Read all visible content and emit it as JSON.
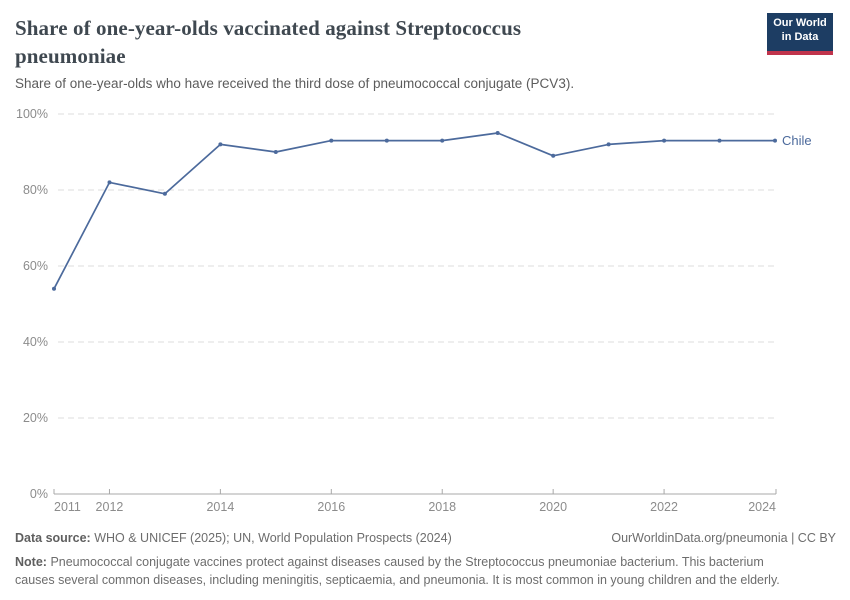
{
  "header": {
    "title": "Share of one-year-olds vaccinated against Streptococcus pneumoniae",
    "subtitle": "Share of one-year-olds who have received the third dose of pneumococcal conjugate (PCV3).",
    "logo": {
      "line1": "Our World",
      "line2": "in Data"
    }
  },
  "chart_data": {
    "type": "line",
    "title": "Share of one-year-olds vaccinated against Streptococcus pneumoniae",
    "x": [
      2011,
      2012,
      2013,
      2014,
      2015,
      2016,
      2017,
      2018,
      2019,
      2020,
      2021,
      2022,
      2023,
      2024
    ],
    "series": [
      {
        "name": "Chile",
        "values": [
          54,
          82,
          79,
          92,
          90,
          93,
          93,
          93,
          95,
          89,
          92,
          93,
          93,
          93
        ],
        "color": "#4c6a9c"
      }
    ],
    "ylim": [
      0,
      100
    ],
    "y_ticks": [
      0,
      20,
      40,
      60,
      80,
      100
    ],
    "y_tick_suffix": "%",
    "x_tick_labels": [
      2011,
      2012,
      2014,
      2016,
      2018,
      2020,
      2022,
      2024
    ],
    "grid": true,
    "legend_position": "end-of-line"
  },
  "footer": {
    "data_source_label": "Data source:",
    "data_source": "WHO & UNICEF (2025); UN, World Population Prospects (2024)",
    "attribution": "OurWorldinData.org/pneumonia | CC BY",
    "note_label": "Note:",
    "note": "Pneumococcal conjugate vaccines protect against diseases caused by the Streptococcus pneumoniae bacterium. This bacterium causes several common diseases, including meningitis, septicaemia, and pneumonia. It is most common in young children and the elderly."
  },
  "colors": {
    "line": "#4c6a9c",
    "logo_bg": "#1d3d63",
    "logo_accent": "#c0344c",
    "grid": "#dcdcdc",
    "axis": "#a8a8a8",
    "tick_label": "#8c8c8c"
  }
}
